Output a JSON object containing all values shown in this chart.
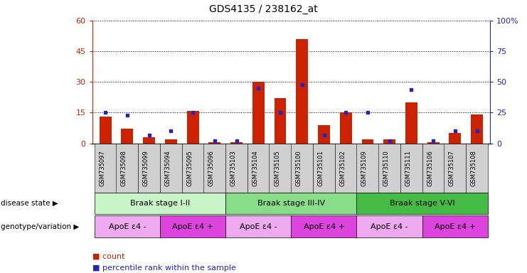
{
  "title": "GDS4135 / 238162_at",
  "samples": [
    "GSM735097",
    "GSM735098",
    "GSM735099",
    "GSM735094",
    "GSM735095",
    "GSM735096",
    "GSM735103",
    "GSM735104",
    "GSM735105",
    "GSM735100",
    "GSM735101",
    "GSM735102",
    "GSM735109",
    "GSM735110",
    "GSM735111",
    "GSM735106",
    "GSM735107",
    "GSM735108"
  ],
  "counts": [
    13,
    7,
    3,
    2,
    16,
    0.5,
    0.5,
    30,
    22,
    51,
    9,
    15,
    2,
    2,
    20,
    0.5,
    5,
    14
  ],
  "percentile": [
    25,
    23,
    7,
    10,
    25,
    2,
    2,
    45,
    25,
    48,
    7,
    25,
    25,
    2,
    44,
    2,
    10,
    10
  ],
  "ylim_left": [
    0,
    60
  ],
  "ylim_right": [
    0,
    100
  ],
  "yticks_left": [
    0,
    15,
    30,
    45,
    60
  ],
  "yticks_right": [
    0,
    25,
    50,
    75,
    100
  ],
  "ytick_labels_left": [
    "0",
    "15",
    "30",
    "45",
    "60"
  ],
  "ytick_labels_right": [
    "0",
    "25",
    "50",
    "75",
    "100%"
  ],
  "disease_groups": [
    {
      "label": "Braak stage I-II",
      "start": 0,
      "end": 6,
      "color": "#c8f5c8"
    },
    {
      "label": "Braak stage III-IV",
      "start": 6,
      "end": 12,
      "color": "#88dd88"
    },
    {
      "label": "Braak stage V-VI",
      "start": 12,
      "end": 18,
      "color": "#44bb44"
    }
  ],
  "genotype_groups": [
    {
      "label": "ApoE ε4 -",
      "start": 0,
      "end": 3,
      "color": "#eeaaee"
    },
    {
      "label": "ApoE ε4 +",
      "start": 3,
      "end": 6,
      "color": "#dd44dd"
    },
    {
      "label": "ApoE ε4 -",
      "start": 6,
      "end": 9,
      "color": "#eeaaee"
    },
    {
      "label": "ApoE ε4 +",
      "start": 9,
      "end": 12,
      "color": "#dd44dd"
    },
    {
      "label": "ApoE ε4 -",
      "start": 12,
      "end": 15,
      "color": "#eeaaee"
    },
    {
      "label": "ApoE ε4 +",
      "start": 15,
      "end": 18,
      "color": "#dd44dd"
    }
  ],
  "bar_color": "#cc2200",
  "dot_color": "#2222cc",
  "label_color_left": "#cc2200",
  "label_color_right": "#2222cc",
  "bg_color": "#ffffff",
  "xtick_bg": "#d0d0d0",
  "disease_label": "disease state",
  "genotype_label": "genotype/variation"
}
